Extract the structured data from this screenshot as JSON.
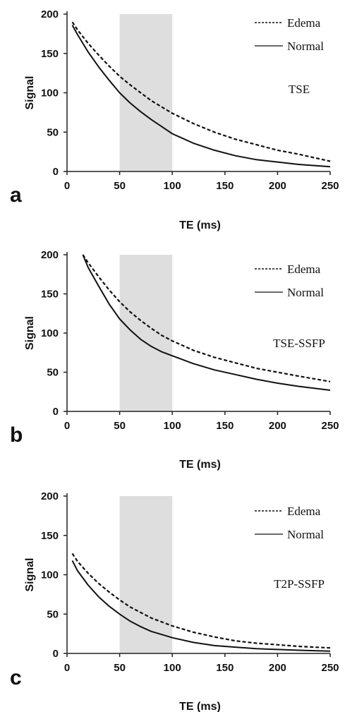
{
  "chart_data": [
    {
      "type": "line",
      "panel_label": "a",
      "annotation": "TSE",
      "xlabel": "TE (ms)",
      "ylabel": "Signal",
      "xlim": [
        0,
        250
      ],
      "ylim": [
        0,
        200
      ],
      "xticks": [
        0,
        50,
        100,
        150,
        200,
        250
      ],
      "yticks": [
        0,
        50,
        100,
        150,
        200
      ],
      "highlight_x": [
        50,
        100
      ],
      "x": [
        5,
        10,
        20,
        30,
        40,
        50,
        60,
        70,
        80,
        90,
        100,
        120,
        140,
        160,
        180,
        200,
        220,
        250
      ],
      "series": [
        {
          "name": "Edema",
          "style": "dashed",
          "values": [
            190,
            180,
            163,
            148,
            134,
            121,
            110,
            100,
            90,
            82,
            74,
            61,
            50,
            41,
            34,
            27,
            22,
            13
          ]
        },
        {
          "name": "Normal",
          "style": "solid",
          "values": [
            186,
            174,
            152,
            133,
            116,
            100,
            87,
            76,
            66,
            57,
            48,
            36,
            27,
            20,
            15,
            12,
            9,
            6
          ]
        }
      ]
    },
    {
      "type": "line",
      "panel_label": "b",
      "annotation": "TSE-SSFP",
      "xlabel": "TE (ms)",
      "ylabel": "Signal",
      "xlim": [
        0,
        250
      ],
      "ylim": [
        0,
        200
      ],
      "xticks": [
        0,
        50,
        100,
        150,
        200,
        250
      ],
      "yticks": [
        0,
        50,
        100,
        150,
        200
      ],
      "highlight_x": [
        50,
        100
      ],
      "x": [
        15,
        20,
        30,
        40,
        50,
        60,
        70,
        80,
        90,
        100,
        120,
        140,
        160,
        180,
        200,
        220,
        250
      ],
      "series": [
        {
          "name": "Edema",
          "style": "dashed",
          "values": [
            200,
            190,
            172,
            155,
            140,
            127,
            116,
            106,
            97,
            90,
            78,
            69,
            62,
            55,
            50,
            45,
            38
          ]
        },
        {
          "name": "Normal",
          "style": "solid",
          "values": [
            200,
            184,
            160,
            137,
            118,
            104,
            92,
            83,
            76,
            71,
            61,
            53,
            47,
            41,
            36,
            32,
            27
          ]
        }
      ]
    },
    {
      "type": "line",
      "panel_label": "c",
      "annotation": "T2P-SSFP",
      "xlabel": "TE (ms)",
      "ylabel": "Signal",
      "xlim": [
        0,
        250
      ],
      "ylim": [
        0,
        200
      ],
      "xticks": [
        0,
        50,
        100,
        150,
        200,
        250
      ],
      "yticks": [
        0,
        50,
        100,
        150,
        200
      ],
      "highlight_x": [
        50,
        100
      ],
      "x": [
        5,
        10,
        20,
        30,
        40,
        50,
        60,
        70,
        80,
        90,
        100,
        120,
        140,
        160,
        180,
        200,
        220,
        250
      ],
      "series": [
        {
          "name": "Edema",
          "style": "dashed",
          "values": [
            127,
            117,
            102,
            89,
            78,
            68,
            59,
            52,
            45,
            40,
            35,
            27,
            21,
            16,
            13,
            11,
            9,
            7
          ]
        },
        {
          "name": "Normal",
          "style": "solid",
          "values": [
            118,
            105,
            87,
            72,
            60,
            50,
            41,
            34,
            28,
            24,
            20,
            14,
            10,
            8,
            6,
            5,
            4,
            3
          ]
        }
      ]
    }
  ]
}
